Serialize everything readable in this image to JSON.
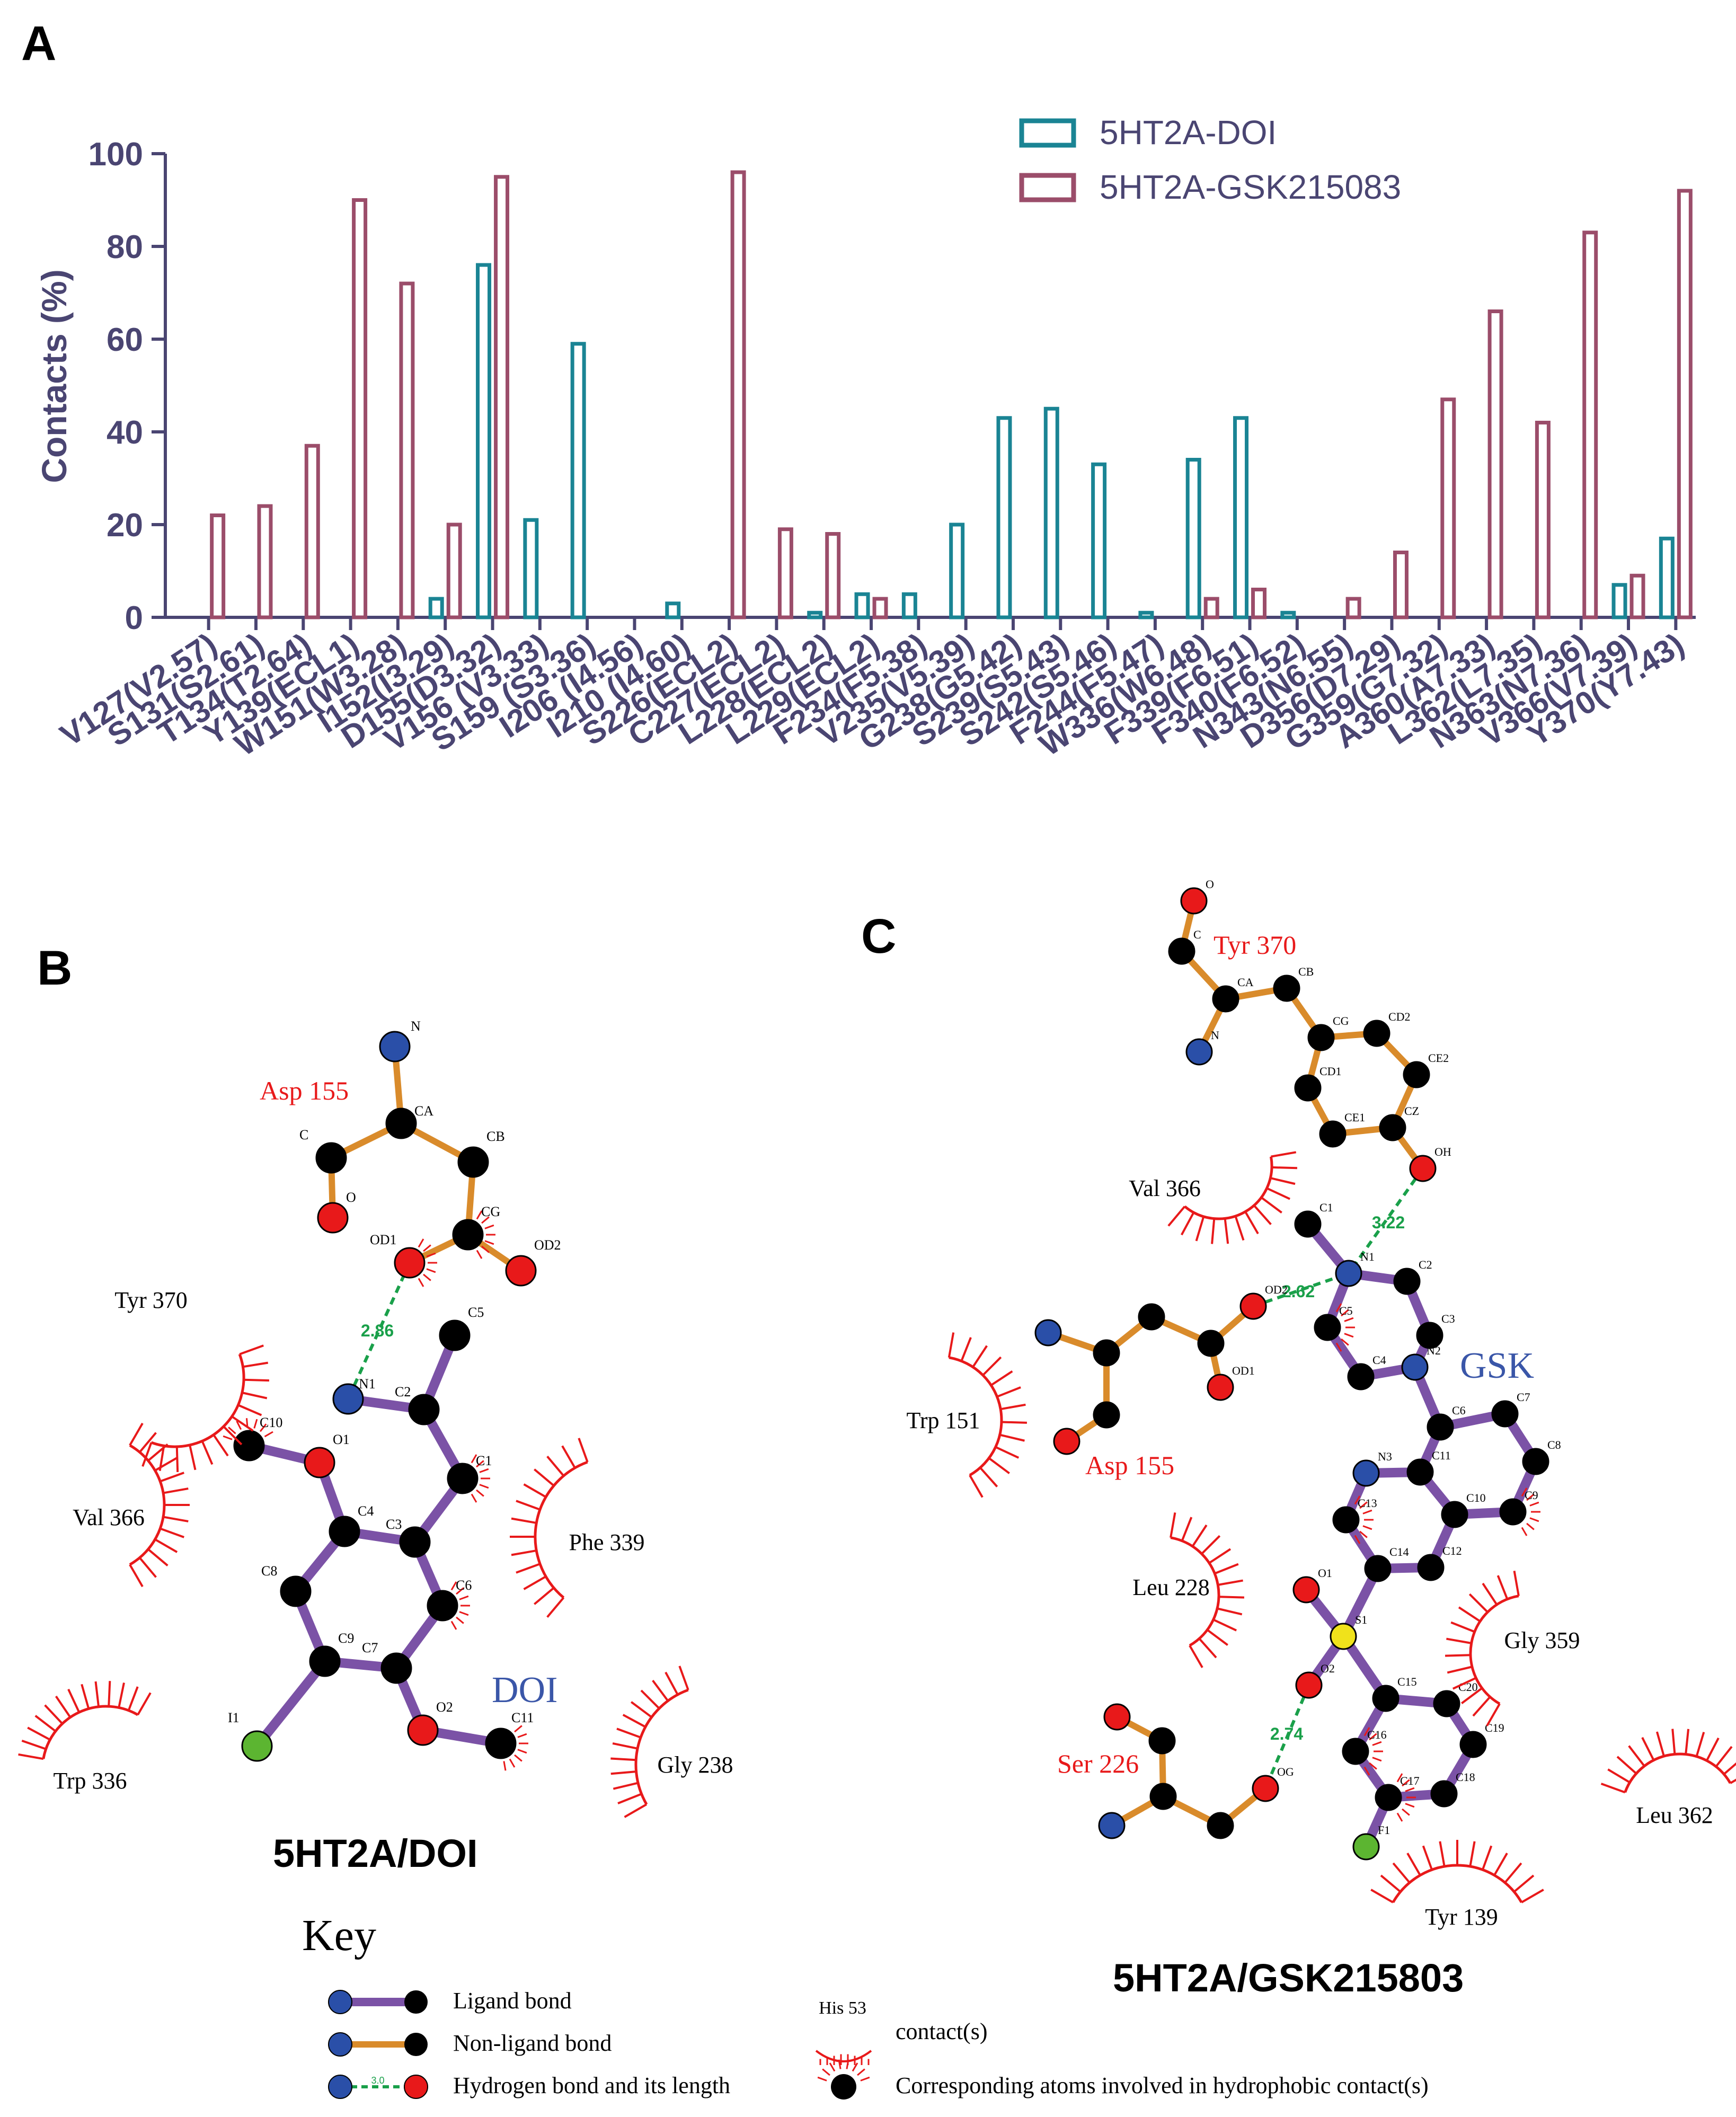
{
  "panels": {
    "a": "A",
    "b": "B",
    "c": "C"
  },
  "chart_data": {
    "type": "bar",
    "title": "",
    "xlabel": "",
    "ylabel": "Contacts (%)",
    "ylim": [
      0,
      100
    ],
    "yticks": [
      0,
      20,
      40,
      60,
      80,
      100
    ],
    "grid": false,
    "legend_position": "top-right",
    "categories": [
      "V127(V2.57)",
      "S131(S2.61)",
      "T134(T2.64)",
      "Y139(ECL1)",
      "W151(W3.28)",
      "I152(I3.29)",
      "D155(D3.32)",
      "V156 (V3.33)",
      "S159 (S3.36)",
      "I206 (I4.56)",
      "I210 (I4.60)",
      "S226(ECL2)",
      "C227(ECL2)",
      "L228(ECL2)",
      "L229(ECL2)",
      "F234(F5.38)",
      "V235(V5.39)",
      "G238(G5.42)",
      "S239(S5.43)",
      "S242(S5.46)",
      "F244(F5.47)",
      "W336(W6.48)",
      "F339(F6.51)",
      "F340(F6.52)",
      "N343(N6.55)",
      "D356(D7.29)",
      "G359(G7.32)",
      "A360(A7.33)",
      "L362(L7.35)",
      "N363(N7.36)",
      "V366(V7.39)",
      "Y370(Y7.43)"
    ],
    "series": [
      {
        "name": "5HT2A-DOI",
        "color": "#1a8494",
        "values": [
          0,
          0,
          0,
          0,
          0,
          4,
          76,
          21,
          59,
          0,
          3,
          0,
          0,
          1,
          5,
          5,
          20,
          43,
          45,
          33,
          1,
          34,
          43,
          1,
          0,
          0,
          0,
          0,
          0,
          0,
          7,
          17
        ]
      },
      {
        "name": "5HT2A-GSK215083",
        "color": "#9b4d6a",
        "values": [
          22,
          24,
          37,
          90,
          72,
          20,
          95,
          0,
          0,
          0,
          0,
          96,
          19,
          18,
          4,
          0,
          0,
          0,
          0,
          0,
          0,
          4,
          6,
          0,
          4,
          14,
          47,
          66,
          42,
          83,
          9,
          92
        ]
      }
    ]
  },
  "diagram_b": {
    "residue_label": "Asp 155",
    "ligand_label": "DOI",
    "hbond_length": "2.86",
    "atoms": [
      "N",
      "CA",
      "C",
      "CB",
      "O",
      "CG",
      "OD1",
      "OD2",
      "C5",
      "N1",
      "C2",
      "C10",
      "O1",
      "C1",
      "C4",
      "C3",
      "C8",
      "C6",
      "C9",
      "C7",
      "I1",
      "O2",
      "C11"
    ],
    "contacts": [
      "Tyr 370",
      "Val 366",
      "Phe 339",
      "Trp 336",
      "Gly 238"
    ],
    "caption": "5HT2A/DOI"
  },
  "diagram_c": {
    "residue_labels": [
      "Tyr 370",
      "Asp 155",
      "Ser 226"
    ],
    "ligand_label": "GSK",
    "hbond_lengths": [
      "3.22",
      "2.62",
      "2.74"
    ],
    "atoms": [
      "O",
      "C",
      "CA",
      "CB",
      "N",
      "CG",
      "CD2",
      "CD1",
      "CE2",
      "CE1",
      "CZ",
      "OH",
      "C1",
      "N1",
      "C2",
      "OD2",
      "C3",
      "C5",
      "C4",
      "N2",
      "C6",
      "C7",
      "C8",
      "N3",
      "C11",
      "C13",
      "C10",
      "C9",
      "C14",
      "C12",
      "O1",
      "S1",
      "O2",
      "C15",
      "C20",
      "C16",
      "C19",
      "C17",
      "C18",
      "F1",
      "OG",
      "OD1"
    ],
    "contacts": [
      "Val 366",
      "Trp 151",
      "Leu 228",
      "Gly 359",
      "Leu 362",
      "Tyr 139"
    ],
    "caption": "5HT2A/GSK215803"
  },
  "key": {
    "title": "Key",
    "ligand_bond": "Ligand bond",
    "non_ligand_bond": "Non-ligand bond",
    "hbond": "Hydrogen bond and its length",
    "hbond_sample": "3.0",
    "contact_residue": "His 53",
    "contact": "contact(s)",
    "hydrophobic_atoms": "Corresponding atoms involved in hydrophobic contact(s)"
  }
}
